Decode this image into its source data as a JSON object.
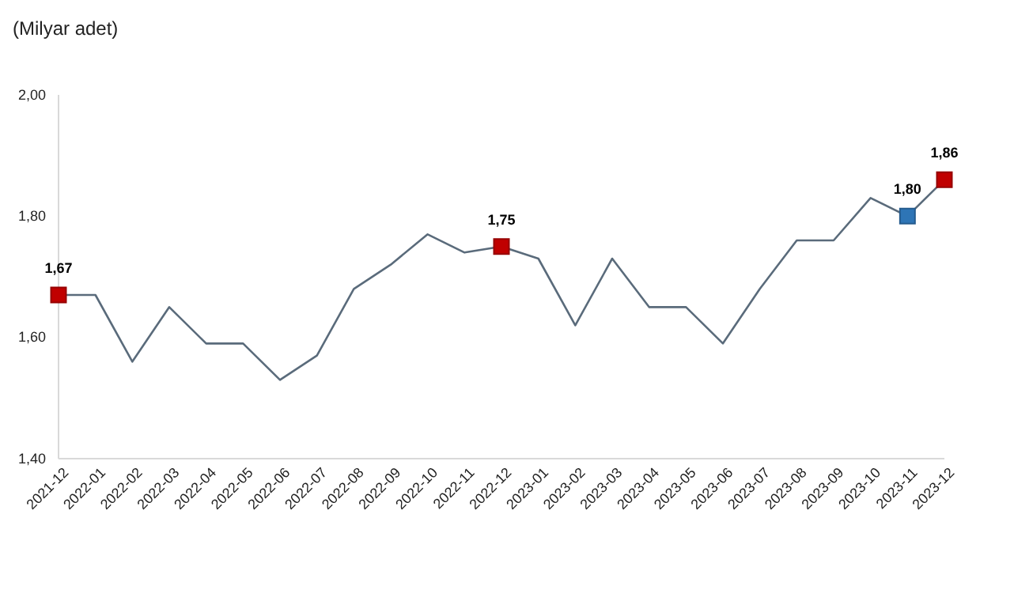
{
  "chart_data": {
    "type": "line",
    "ylabel": "(Milyar adet)",
    "categories": [
      "2021-12",
      "2022-01",
      "2022-02",
      "2022-03",
      "2022-04",
      "2022-05",
      "2022-06",
      "2022-07",
      "2022-08",
      "2022-09",
      "2022-10",
      "2022-11",
      "2022-12",
      "2023-01",
      "2023-02",
      "2023-03",
      "2023-04",
      "2023-05",
      "2023-06",
      "2023-07",
      "2023-08",
      "2023-09",
      "2023-10",
      "2023-11",
      "2023-12"
    ],
    "series": [
      {
        "color": "#5a6b7b",
        "marker": "none",
        "values": [
          1.67,
          1.67,
          1.56,
          1.65,
          1.59,
          1.59,
          1.53,
          1.57,
          1.68,
          1.72,
          1.77,
          1.74,
          1.75,
          1.73,
          1.62,
          1.73,
          1.65,
          1.65,
          1.59,
          1.68,
          1.76,
          1.76,
          1.83,
          1.8,
          1.86
        ]
      },
      {
        "type": "scatter",
        "marker": "square",
        "color": "#c00000",
        "values": [
          1.67,
          null,
          null,
          null,
          null,
          null,
          null,
          null,
          null,
          null,
          null,
          null,
          1.75,
          null,
          null,
          null,
          null,
          null,
          null,
          null,
          null,
          null,
          null,
          null,
          1.86
        ],
        "value_labels": [
          "1,67",
          null,
          null,
          null,
          null,
          null,
          null,
          null,
          null,
          null,
          null,
          null,
          "1,75",
          null,
          null,
          null,
          null,
          null,
          null,
          null,
          null,
          null,
          null,
          null,
          "1,86"
        ]
      },
      {
        "type": "scatter",
        "marker": "square",
        "color": "#2e75b6",
        "values": [
          null,
          null,
          null,
          null,
          null,
          null,
          null,
          null,
          null,
          null,
          null,
          null,
          null,
          null,
          null,
          null,
          null,
          null,
          null,
          null,
          null,
          null,
          null,
          1.8,
          null
        ],
        "value_labels": [
          null,
          null,
          null,
          null,
          null,
          null,
          null,
          null,
          null,
          null,
          null,
          null,
          null,
          null,
          null,
          null,
          null,
          null,
          null,
          null,
          null,
          null,
          null,
          "1,80",
          null
        ]
      }
    ],
    "ylim": [
      1.4,
      2.0
    ],
    "yticks": [
      {
        "value": 1.4,
        "label": "1,40"
      },
      {
        "value": 1.6,
        "label": "1,60"
      },
      {
        "value": 1.8,
        "label": "1,80"
      },
      {
        "value": 2.0,
        "label": "2,00"
      }
    ],
    "grid": false,
    "line_style": "solid"
  }
}
